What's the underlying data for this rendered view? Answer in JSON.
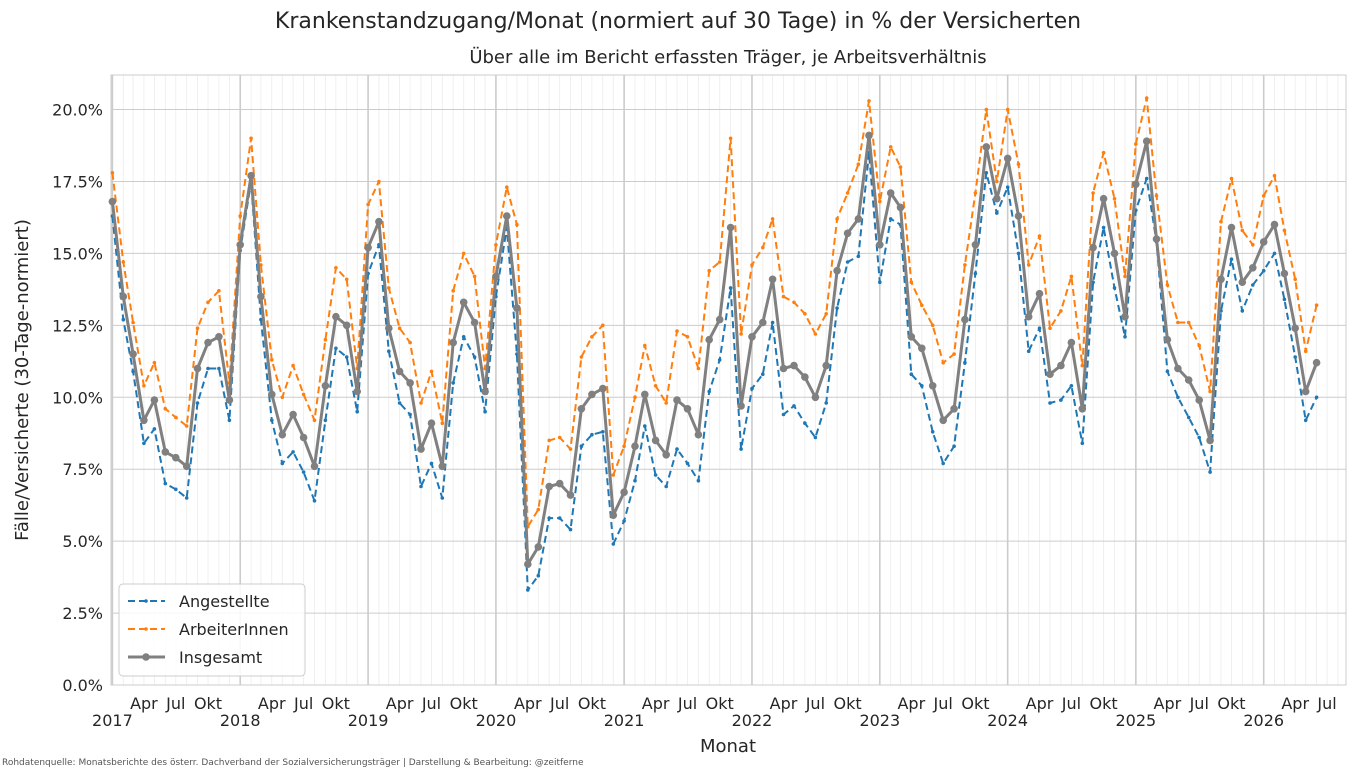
{
  "chart_data": {
    "type": "line",
    "title": "Krankenstandzugang/Monat (normiert auf 30 Tage) in % der Versicherten",
    "subtitle": "Über alle im Bericht erfassten Träger, je Arbeitsverhältnis",
    "xlabel": "Monat",
    "ylabel": "Fälle/Versicherte (30-Tage-normiert)",
    "source": "Rohdatenquelle: Monatsberichte des österr. Dachverband der Sozialversicherungsträger | Darstellung & Bearbeitung: @zeitferne",
    "start": "2017-01",
    "xlim": [
      "2016-12-28",
      "2026-08-24"
    ],
    "ylim": [
      0,
      21.2
    ],
    "y_ticks": [
      0,
      2.5,
      5,
      7.5,
      10,
      12.5,
      15,
      17.5,
      20
    ],
    "y_tick_labels": [
      "0.0%",
      "2.5%",
      "5.0%",
      "7.5%",
      "10.0%",
      "12.5%",
      "15.0%",
      "17.5%",
      "20.0%"
    ],
    "year_labels": [
      "2017",
      "2018",
      "2019",
      "2020",
      "2021",
      "2022",
      "2023",
      "2024",
      "2025",
      "2026"
    ],
    "month_tick_labels": [
      "Apr",
      "Jul",
      "Okt"
    ],
    "legend_position": "lower-left",
    "grid": true,
    "series": [
      {
        "name": "Angestellte",
        "color": "#1f77b4",
        "style": "dashed",
        "values": [
          16.3,
          12.7,
          10.9,
          8.4,
          8.9,
          7.0,
          6.8,
          6.5,
          9.8,
          11.0,
          11.0,
          9.2,
          15.1,
          17.5,
          12.7,
          9.2,
          7.7,
          8.1,
          7.4,
          6.4,
          9.2,
          11.7,
          11.4,
          9.5,
          14.3,
          15.3,
          11.6,
          9.8,
          9.4,
          6.9,
          7.7,
          6.5,
          10.5,
          12.1,
          11.4,
          9.5,
          13.5,
          15.9,
          11.5,
          3.3,
          3.8,
          5.8,
          5.8,
          5.4,
          8.3,
          8.7,
          8.8,
          4.9,
          5.7,
          7.1,
          9.0,
          7.3,
          6.9,
          8.2,
          7.7,
          7.1,
          10.2,
          11.3,
          13.8,
          8.2,
          10.3,
          10.8,
          12.6,
          9.4,
          9.7,
          9.1,
          8.6,
          9.8,
          13.1,
          14.7,
          14.9,
          18.5,
          14.0,
          16.2,
          16.0,
          10.8,
          10.4,
          8.8,
          7.7,
          8.3,
          11.2,
          14.3,
          17.8,
          16.4,
          17.3,
          15.0,
          11.6,
          12.4,
          9.8,
          9.9,
          10.4,
          8.4,
          14.0,
          15.9,
          13.8,
          12.1,
          16.5,
          17.6,
          15.4,
          10.9,
          10.0,
          9.3,
          8.6,
          7.4,
          13.0,
          14.8,
          13.0,
          13.9,
          14.4,
          15.0,
          13.4,
          11.4,
          9.2,
          10.0
        ]
      },
      {
        "name": "ArbeiterInnen",
        "color": "#ff7f0e",
        "style": "dashed",
        "values": [
          17.8,
          14.7,
          12.6,
          10.4,
          11.2,
          9.6,
          9.3,
          9.0,
          12.4,
          13.3,
          13.7,
          10.5,
          16.3,
          19.0,
          14.6,
          11.3,
          10.0,
          11.1,
          10.1,
          9.2,
          12.0,
          14.5,
          14.1,
          11.0,
          16.7,
          17.5,
          13.8,
          12.4,
          11.9,
          9.8,
          10.9,
          9.1,
          13.7,
          15.0,
          14.2,
          11.0,
          15.3,
          17.3,
          16.0,
          5.5,
          6.1,
          8.5,
          8.6,
          8.2,
          11.4,
          12.1,
          12.5,
          7.3,
          8.3,
          10.0,
          11.8,
          10.4,
          9.8,
          12.3,
          12.1,
          11.0,
          14.4,
          14.7,
          19.0,
          12.2,
          14.6,
          15.2,
          16.2,
          13.5,
          13.3,
          12.9,
          12.2,
          12.9,
          16.2,
          17.1,
          18.1,
          20.3,
          16.8,
          18.7,
          18.0,
          14.0,
          13.2,
          12.5,
          11.2,
          11.5,
          14.6,
          17.1,
          20.0,
          17.5,
          20.0,
          18.1,
          14.6,
          15.6,
          12.4,
          13.0,
          14.2,
          11.1,
          17.1,
          18.5,
          16.9,
          14.2,
          18.8,
          20.4,
          17.0,
          13.9,
          12.6,
          12.6,
          11.8,
          10.2,
          16.1,
          17.6,
          15.8,
          15.3,
          17.0,
          17.7,
          15.8,
          14.1,
          11.6,
          13.2
        ]
      },
      {
        "name": "Insgesamt",
        "color": "#808080",
        "style": "solid",
        "values": [
          16.8,
          13.5,
          11.5,
          9.2,
          9.9,
          8.1,
          7.9,
          7.6,
          11.0,
          11.9,
          12.1,
          9.9,
          15.3,
          17.7,
          13.5,
          10.1,
          8.7,
          9.4,
          8.6,
          7.6,
          10.4,
          12.8,
          12.5,
          10.2,
          15.2,
          16.1,
          12.4,
          10.9,
          10.5,
          8.2,
          9.1,
          7.6,
          11.9,
          13.3,
          12.6,
          10.2,
          14.2,
          16.3,
          13.1,
          4.2,
          4.8,
          6.9,
          7.0,
          6.6,
          9.6,
          10.1,
          10.3,
          5.9,
          6.7,
          8.3,
          10.1,
          8.5,
          8.0,
          9.9,
          9.6,
          8.7,
          12.0,
          12.7,
          15.9,
          9.7,
          12.1,
          12.6,
          14.1,
          11.0,
          11.1,
          10.7,
          10.0,
          11.1,
          14.4,
          15.7,
          16.2,
          19.1,
          15.3,
          17.1,
          16.6,
          12.1,
          11.7,
          10.4,
          9.2,
          9.6,
          12.7,
          15.3,
          18.7,
          16.9,
          18.3,
          16.3,
          12.8,
          13.6,
          10.8,
          11.1,
          11.9,
          9.6,
          15.2,
          16.9,
          15.0,
          12.8,
          17.4,
          18.9,
          15.5,
          12.0,
          11.0,
          10.6,
          9.9,
          8.5,
          14.1,
          15.9,
          14.0,
          14.5,
          15.4,
          16.0,
          14.3,
          12.4,
          10.2,
          11.2
        ]
      }
    ]
  }
}
